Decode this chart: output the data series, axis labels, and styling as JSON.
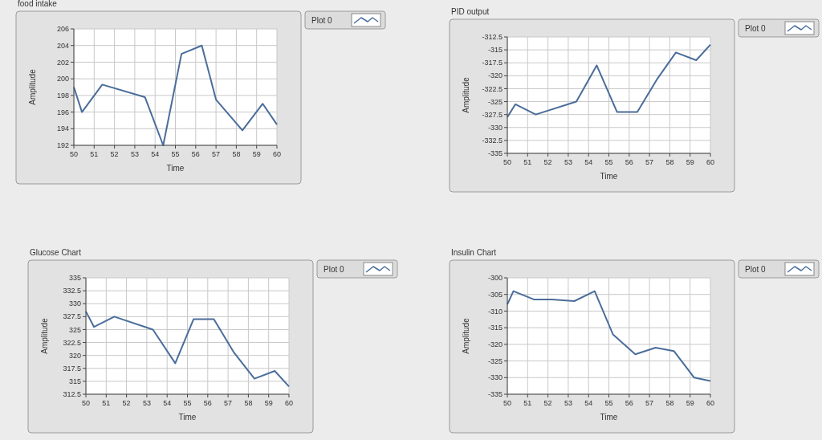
{
  "chart_data": [
    {
      "type": "line",
      "title": "food intake",
      "xlabel": "Time",
      "ylabel": "Amplitude",
      "xlim": [
        50,
        60
      ],
      "xticks": [
        50,
        51,
        52,
        53,
        54,
        55,
        56,
        57,
        58,
        59,
        60
      ],
      "ylim": [
        192,
        206
      ],
      "yticks": [
        192,
        194,
        196,
        198,
        200,
        202,
        204,
        206
      ],
      "grid": true,
      "legend": "right",
      "series": [
        {
          "name": "Plot 0",
          "color": "#4a6d9a",
          "x": [
            50,
            50.4,
            51.4,
            53.5,
            54.4,
            55.3,
            56.3,
            57,
            58.3,
            59.3,
            60
          ],
          "values": [
            199,
            196,
            199.3,
            197.8,
            192,
            203,
            204,
            197.5,
            193.8,
            197,
            194.5
          ]
        }
      ]
    },
    {
      "type": "line",
      "title": "PID output",
      "xlabel": "Time",
      "ylabel": "Amplitude",
      "xlim": [
        50,
        60
      ],
      "xticks": [
        50,
        51,
        52,
        53,
        54,
        55,
        56,
        57,
        58,
        59,
        60
      ],
      "ylim": [
        -335,
        -312.5
      ],
      "yticks": [
        -335,
        -332.5,
        -330,
        -327.5,
        -325,
        -322.5,
        -320,
        -317.5,
        -315,
        -312.5
      ],
      "grid": true,
      "legend": "right",
      "series": [
        {
          "name": "Plot 0",
          "color": "#4a6d9a",
          "x": [
            50,
            50.4,
            51.4,
            53.4,
            54.4,
            55.4,
            56.4,
            57.4,
            58.3,
            59.3,
            60
          ],
          "values": [
            -328,
            -325.5,
            -327.5,
            -325,
            -318,
            -327,
            -327,
            -320.5,
            -315.5,
            -317,
            -314
          ]
        }
      ]
    },
    {
      "type": "line",
      "title": "Glucose Chart",
      "xlabel": "Time",
      "ylabel": "Amplitude",
      "xlim": [
        50,
        60
      ],
      "xticks": [
        50,
        51,
        52,
        53,
        54,
        55,
        56,
        57,
        58,
        59,
        60
      ],
      "ylim": [
        312.5,
        335
      ],
      "yticks": [
        312.5,
        315,
        317.5,
        320,
        322.5,
        325,
        327.5,
        330,
        332.5,
        335
      ],
      "grid": true,
      "legend": "right",
      "series": [
        {
          "name": "Plot 0",
          "color": "#4a6d9a",
          "x": [
            50,
            50.4,
            51.4,
            53.3,
            54.4,
            55.3,
            56.3,
            57.3,
            58.3,
            59.3,
            60
          ],
          "values": [
            328.5,
            325.5,
            327.5,
            325,
            318.5,
            327,
            327,
            320.5,
            315.5,
            317,
            314
          ]
        }
      ]
    },
    {
      "type": "line",
      "title": "Insulin Chart",
      "xlabel": "Time",
      "ylabel": "Amplitude",
      "xlim": [
        50,
        60
      ],
      "xticks": [
        50,
        51,
        52,
        53,
        54,
        55,
        56,
        57,
        58,
        59,
        60
      ],
      "ylim": [
        -335,
        -300
      ],
      "yticks": [
        -335,
        -330,
        -325,
        -320,
        -315,
        -310,
        -305,
        -300
      ],
      "grid": true,
      "legend": "right",
      "series": [
        {
          "name": "Plot 0",
          "color": "#4a6d9a",
          "x": [
            50,
            50.3,
            51.3,
            52.2,
            53.3,
            54.3,
            55.2,
            56.3,
            57.3,
            58.2,
            59.2,
            60
          ],
          "values": [
            -308,
            -304,
            -306.5,
            -306.5,
            -307,
            -304,
            -317,
            -323,
            -321,
            -322,
            -330,
            -331
          ]
        }
      ]
    }
  ]
}
